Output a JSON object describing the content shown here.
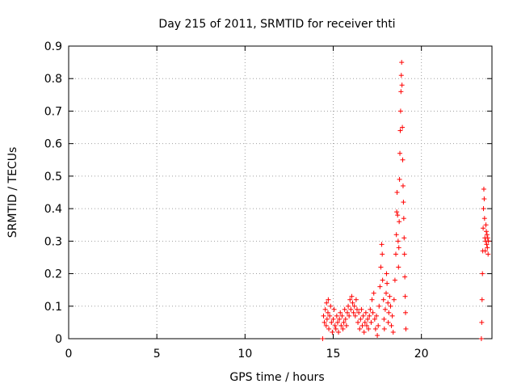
{
  "chart_data": {
    "type": "scatter",
    "title": "Day 215 of 2011, SRMTID for receiver thti",
    "xlabel": "GPS time / hours",
    "ylabel": "SRMTID / TECUs",
    "xlim": [
      0,
      24
    ],
    "ylim": [
      0,
      0.9
    ],
    "xticks": [
      0,
      5,
      10,
      15,
      20
    ],
    "xtick_labels": [
      "0",
      "5",
      "10",
      "15",
      "20"
    ],
    "yticks": [
      0,
      0.1,
      0.2,
      0.3,
      0.4,
      0.5,
      0.6,
      0.7,
      0.8,
      0.9
    ],
    "ytick_labels": [
      "0",
      "0.1",
      "0.2",
      "0.3",
      "0.4",
      "0.5",
      "0.6",
      "0.7",
      "0.8",
      "0.9"
    ],
    "grid": true,
    "marker": "+",
    "marker_color": "#ff0000",
    "series": [
      {
        "name": "SRMTID",
        "points": [
          [
            14.4,
            0.0
          ],
          [
            14.45,
            0.07
          ],
          [
            14.5,
            0.05
          ],
          [
            14.55,
            0.09
          ],
          [
            14.6,
            0.04
          ],
          [
            14.62,
            0.11
          ],
          [
            14.65,
            0.06
          ],
          [
            14.7,
            0.08
          ],
          [
            14.72,
            0.12
          ],
          [
            14.75,
            0.03
          ],
          [
            14.8,
            0.07
          ],
          [
            14.85,
            0.1
          ],
          [
            14.9,
            0.05
          ],
          [
            14.95,
            0.02
          ],
          [
            15.0,
            0.06
          ],
          [
            15.05,
            0.09
          ],
          [
            15.1,
            0.04
          ],
          [
            15.15,
            0.03
          ],
          [
            15.2,
            0.07
          ],
          [
            15.25,
            0.05
          ],
          [
            15.3,
            0.02
          ],
          [
            15.35,
            0.06
          ],
          [
            15.4,
            0.08
          ],
          [
            15.45,
            0.04
          ],
          [
            15.5,
            0.07
          ],
          [
            15.55,
            0.03
          ],
          [
            15.6,
            0.05
          ],
          [
            15.65,
            0.09
          ],
          [
            15.7,
            0.06
          ],
          [
            15.75,
            0.04
          ],
          [
            15.8,
            0.08
          ],
          [
            15.85,
            0.1
          ],
          [
            15.9,
            0.07
          ],
          [
            15.95,
            0.12
          ],
          [
            16.0,
            0.09
          ],
          [
            16.05,
            0.13
          ],
          [
            16.1,
            0.11
          ],
          [
            16.15,
            0.08
          ],
          [
            16.2,
            0.1
          ],
          [
            16.25,
            0.07
          ],
          [
            16.3,
            0.12
          ],
          [
            16.35,
            0.09
          ],
          [
            16.4,
            0.05
          ],
          [
            16.45,
            0.08
          ],
          [
            16.5,
            0.03
          ],
          [
            16.55,
            0.06
          ],
          [
            16.6,
            0.09
          ],
          [
            16.65,
            0.04
          ],
          [
            16.7,
            0.07
          ],
          [
            16.75,
            0.02
          ],
          [
            16.8,
            0.05
          ],
          [
            16.85,
            0.08
          ],
          [
            16.9,
            0.04
          ],
          [
            16.95,
            0.06
          ],
          [
            17.0,
            0.03
          ],
          [
            17.05,
            0.07
          ],
          [
            17.1,
            0.09
          ],
          [
            17.15,
            0.05
          ],
          [
            17.2,
            0.12
          ],
          [
            17.25,
            0.08
          ],
          [
            17.3,
            0.14
          ],
          [
            17.35,
            0.06
          ],
          [
            17.4,
            0.03
          ],
          [
            17.45,
            0.07
          ],
          [
            17.5,
            0.01
          ],
          [
            17.55,
            0.04
          ],
          [
            17.6,
            0.1
          ],
          [
            17.65,
            0.16
          ],
          [
            17.7,
            0.22
          ],
          [
            17.75,
            0.29
          ],
          [
            17.78,
            0.26
          ],
          [
            17.8,
            0.18
          ],
          [
            17.85,
            0.12
          ],
          [
            17.88,
            0.06
          ],
          [
            17.9,
            0.03
          ],
          [
            17.95,
            0.09
          ],
          [
            18.0,
            0.14
          ],
          [
            18.02,
            0.2
          ],
          [
            18.05,
            0.17
          ],
          [
            18.1,
            0.11
          ],
          [
            18.12,
            0.05
          ],
          [
            18.15,
            0.08
          ],
          [
            18.2,
            0.13
          ],
          [
            18.25,
            0.1
          ],
          [
            18.3,
            0.04
          ],
          [
            18.35,
            0.07
          ],
          [
            18.4,
            0.02
          ],
          [
            18.45,
            0.12
          ],
          [
            18.5,
            0.18
          ],
          [
            18.55,
            0.26
          ],
          [
            18.58,
            0.32
          ],
          [
            18.6,
            0.39
          ],
          [
            18.62,
            0.45
          ],
          [
            18.65,
            0.38
          ],
          [
            18.68,
            0.3
          ],
          [
            18.7,
            0.22
          ],
          [
            18.72,
            0.28
          ],
          [
            18.74,
            0.36
          ],
          [
            18.76,
            0.49
          ],
          [
            18.78,
            0.57
          ],
          [
            18.8,
            0.64
          ],
          [
            18.82,
            0.7
          ],
          [
            18.84,
            0.76
          ],
          [
            18.86,
            0.81
          ],
          [
            18.88,
            0.85
          ],
          [
            18.9,
            0.78
          ],
          [
            18.92,
            0.65
          ],
          [
            18.94,
            0.55
          ],
          [
            18.96,
            0.47
          ],
          [
            18.98,
            0.42
          ],
          [
            19.0,
            0.37
          ],
          [
            19.02,
            0.31
          ],
          [
            19.04,
            0.26
          ],
          [
            19.06,
            0.19
          ],
          [
            19.08,
            0.13
          ],
          [
            19.1,
            0.08
          ],
          [
            19.12,
            0.03
          ],
          [
            23.4,
            0.0
          ],
          [
            23.42,
            0.05
          ],
          [
            23.44,
            0.12
          ],
          [
            23.46,
            0.2
          ],
          [
            23.48,
            0.27
          ],
          [
            23.5,
            0.34
          ],
          [
            23.52,
            0.4
          ],
          [
            23.54,
            0.46
          ],
          [
            23.56,
            0.43
          ],
          [
            23.58,
            0.37
          ],
          [
            23.6,
            0.31
          ],
          [
            23.62,
            0.27
          ],
          [
            23.64,
            0.3
          ],
          [
            23.66,
            0.35
          ],
          [
            23.68,
            0.33
          ],
          [
            23.7,
            0.29
          ],
          [
            23.72,
            0.32
          ],
          [
            23.74,
            0.28
          ],
          [
            23.76,
            0.31
          ],
          [
            23.78,
            0.26
          ],
          [
            23.8,
            0.3
          ]
        ]
      }
    ]
  }
}
